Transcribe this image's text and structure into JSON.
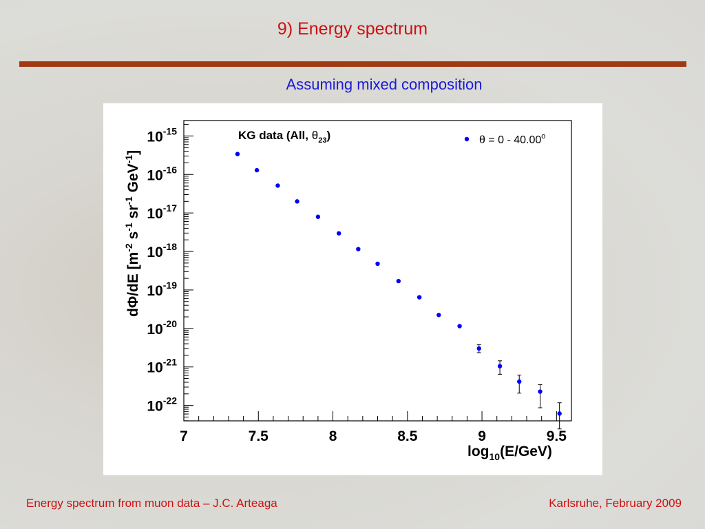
{
  "slide": {
    "title": "9) Energy spectrum",
    "subtitle": "Assuming mixed composition",
    "footer_left": "Energy spectrum from muon data – J.C. Arteaga",
    "footer_right": "Karlsruhe,  February 2009",
    "colors": {
      "title": "#cc1111",
      "rule": "#a13a12",
      "subtitle": "#1a1ad6",
      "marker": "#0000ff"
    }
  },
  "chart_data": {
    "type": "scatter",
    "annotation": {
      "main": "KG data (All, ",
      "theta": "θ",
      "sub": "23",
      "close": ")"
    },
    "legend": {
      "position": "top-right",
      "label": "θ = 0 - 40.00",
      "superscript": "o"
    },
    "xlabel": {
      "prefix": "log",
      "sub": "10",
      "suffix": "(E/GeV)"
    },
    "ylabel": "dΦ/dE [m^-2 s^-1 sr^-1 GeV^-1]",
    "xlim": [
      7,
      9.6
    ],
    "ylim_log10": [
      -22.4,
      -14.6
    ],
    "y_scale": "log",
    "grid": false,
    "x_ticks": [
      "7",
      "7.5",
      "8",
      "8.5",
      "9",
      "9.5"
    ],
    "y_tick_exponents": [
      "-15",
      "-16",
      "-17",
      "-18",
      "-19",
      "-20",
      "-21",
      "-22"
    ],
    "y_tick_base": "10",
    "series": [
      {
        "name": "θ = 0 - 40.00°",
        "color": "#0000ff",
        "x": [
          7.36,
          7.49,
          7.63,
          7.76,
          7.9,
          8.04,
          8.17,
          8.3,
          8.44,
          8.58,
          8.71,
          8.85,
          8.98,
          9.12,
          9.25,
          9.39,
          9.52
        ],
        "log10_y": [
          -15.47,
          -15.89,
          -16.29,
          -16.7,
          -17.1,
          -17.53,
          -17.94,
          -18.32,
          -18.77,
          -19.19,
          -19.65,
          -19.94,
          -20.52,
          -20.98,
          -21.38,
          -21.64,
          -22.21
        ],
        "log10_y_err_low": [
          0,
          0,
          0,
          0,
          0,
          0,
          0,
          0,
          0,
          0,
          0,
          0,
          0.11,
          0.21,
          0.3,
          0.42,
          0.4
        ],
        "log10_y_err_high": [
          0,
          0,
          0,
          0,
          0,
          0,
          0,
          0,
          0,
          0,
          0,
          0,
          0.1,
          0.14,
          0.17,
          0.18,
          0.28
        ]
      }
    ]
  }
}
